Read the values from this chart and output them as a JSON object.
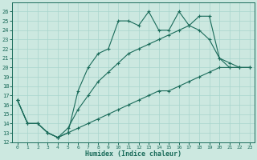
{
  "xlabel": "Humidex (Indice chaleur)",
  "bg_color": "#cce8e0",
  "line_color": "#1a6b5a",
  "grid_color": "#a8d4cc",
  "xlim": [
    -0.5,
    23.5
  ],
  "ylim": [
    12,
    27
  ],
  "yticks": [
    12,
    13,
    14,
    15,
    16,
    17,
    18,
    19,
    20,
    21,
    22,
    23,
    24,
    25,
    26
  ],
  "xticks": [
    0,
    1,
    2,
    3,
    4,
    5,
    6,
    7,
    8,
    9,
    10,
    11,
    12,
    13,
    14,
    15,
    16,
    17,
    18,
    19,
    20,
    21,
    22,
    23
  ],
  "line1_x": [
    0,
    1,
    2,
    3,
    4,
    5,
    6,
    7,
    8,
    9,
    10,
    11,
    12,
    13,
    14,
    15,
    16,
    17,
    18,
    19,
    20,
    21,
    22,
    23
  ],
  "line1_y": [
    16.5,
    14.0,
    14.0,
    13.0,
    12.5,
    13.0,
    17.5,
    20.0,
    21.5,
    22.0,
    25.0,
    25.0,
    24.5,
    26.0,
    24.0,
    24.0,
    26.0,
    24.5,
    24.0,
    23.0,
    21.0,
    20.0,
    20.0,
    20.0
  ],
  "line2_x": [
    0,
    1,
    2,
    3,
    4,
    5,
    6,
    7,
    8,
    9,
    10,
    11,
    12,
    13,
    14,
    15,
    16,
    17,
    18,
    19,
    20,
    21,
    22,
    23
  ],
  "line2_y": [
    16.5,
    14.0,
    14.0,
    13.0,
    12.5,
    13.5,
    15.5,
    17.0,
    18.5,
    19.5,
    20.5,
    21.5,
    22.0,
    22.5,
    23.0,
    23.5,
    24.0,
    24.5,
    25.5,
    25.5,
    21.0,
    20.5,
    20.0,
    20.0
  ],
  "line3_x": [
    0,
    1,
    2,
    3,
    4,
    5,
    6,
    7,
    8,
    9,
    10,
    11,
    12,
    13,
    14,
    15,
    16,
    17,
    18,
    19,
    20,
    21,
    22,
    23
  ],
  "line3_y": [
    16.5,
    14.0,
    14.0,
    13.0,
    12.5,
    13.0,
    13.5,
    14.0,
    14.5,
    15.0,
    15.5,
    16.0,
    16.5,
    17.0,
    17.5,
    17.5,
    18.0,
    18.5,
    19.0,
    19.5,
    20.0,
    20.0,
    20.0,
    20.0
  ],
  "ylabel_fontsize": 5,
  "xlabel_fontsize": 6,
  "tick_fontsize": 4.5,
  "ytick_fontsize": 5
}
